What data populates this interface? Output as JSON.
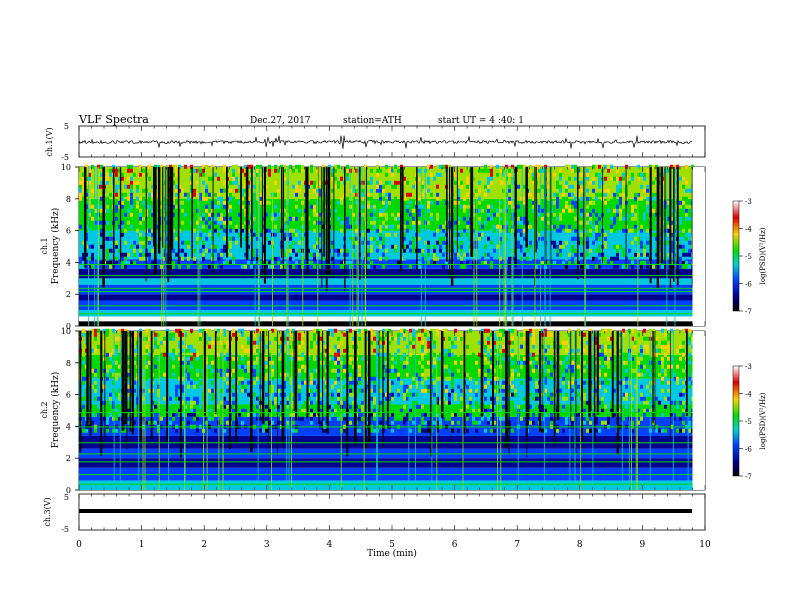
{
  "header": {
    "title": "VLF  Spectra",
    "date": "Dec.27, 2017",
    "station": "station=ATH",
    "start": "start  UT  =   4  :40: 1"
  },
  "panels": {
    "ch1_wave": {
      "ylabel": "ch.1(V)",
      "yticks": [
        "5",
        "-5"
      ]
    },
    "ch1_spec": {
      "ylabel_top": "ch.1",
      "ylabel": "Frequency  (kHz)",
      "yticks": [
        "0",
        "2",
        "4",
        "6",
        "8",
        "10"
      ]
    },
    "ch2_spec": {
      "ylabel_top": "ch.2",
      "ylabel": "Frequency  (kHz)",
      "yticks": [
        "0",
        "2",
        "4",
        "6",
        "8",
        "10"
      ]
    },
    "ch3_wave": {
      "ylabel": "ch.3(V)",
      "yticks": [
        "5",
        "-5"
      ]
    }
  },
  "colorbar": {
    "label": "log(PSD)(V²/Hz)",
    "ticks": [
      "-3",
      "-4",
      "-5",
      "-6",
      "-7"
    ],
    "colors": [
      "#ffffff",
      "#e00000",
      "#ffd000",
      "#00e000",
      "#00d0d0",
      "#0040ff",
      "#000080",
      "#000000"
    ]
  },
  "xaxis": {
    "label": "Time  (min)",
    "ticks": [
      "0",
      "1",
      "2",
      "3",
      "4",
      "5",
      "6",
      "7",
      "8",
      "9",
      "10"
    ]
  },
  "chart_data": {
    "type": "heatmap",
    "x_range_min": [
      0,
      10
    ],
    "data_end_min": 9.8,
    "spectrogram_freq_range_khz": [
      0,
      10
    ],
    "colorbar_range_log_psd": [
      -7,
      -3
    ],
    "waveform_range_v": [
      -5,
      5
    ]
  }
}
